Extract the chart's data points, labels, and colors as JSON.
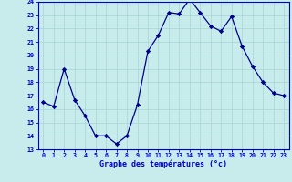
{
  "x": [
    0,
    1,
    2,
    3,
    4,
    5,
    6,
    7,
    8,
    9,
    10,
    11,
    12,
    13,
    14,
    15,
    16,
    17,
    18,
    19,
    20,
    21,
    22,
    23
  ],
  "y": [
    16.5,
    16.2,
    19.0,
    16.7,
    15.5,
    14.0,
    14.0,
    13.4,
    14.0,
    16.3,
    20.3,
    21.5,
    23.2,
    23.1,
    24.2,
    23.2,
    22.2,
    21.8,
    22.9,
    20.7,
    19.2,
    18.0,
    17.2,
    17.0
  ],
  "xlabel": "Graphe des températures (°c)",
  "ylim": [
    13,
    24
  ],
  "xlim_min": -0.5,
  "xlim_max": 23.5,
  "yticks": [
    13,
    14,
    15,
    16,
    17,
    18,
    19,
    20,
    21,
    22,
    23,
    24
  ],
  "xticks": [
    0,
    1,
    2,
    3,
    4,
    5,
    6,
    7,
    8,
    9,
    10,
    11,
    12,
    13,
    14,
    15,
    16,
    17,
    18,
    19,
    20,
    21,
    22,
    23
  ],
  "line_color": "#00008b",
  "marker_color": "#00008b",
  "bg_color": "#c8ecec",
  "grid_color": "#a8d4d4",
  "label_color": "#0000cc",
  "tick_color": "#0000cc",
  "spine_color": "#0000cc"
}
